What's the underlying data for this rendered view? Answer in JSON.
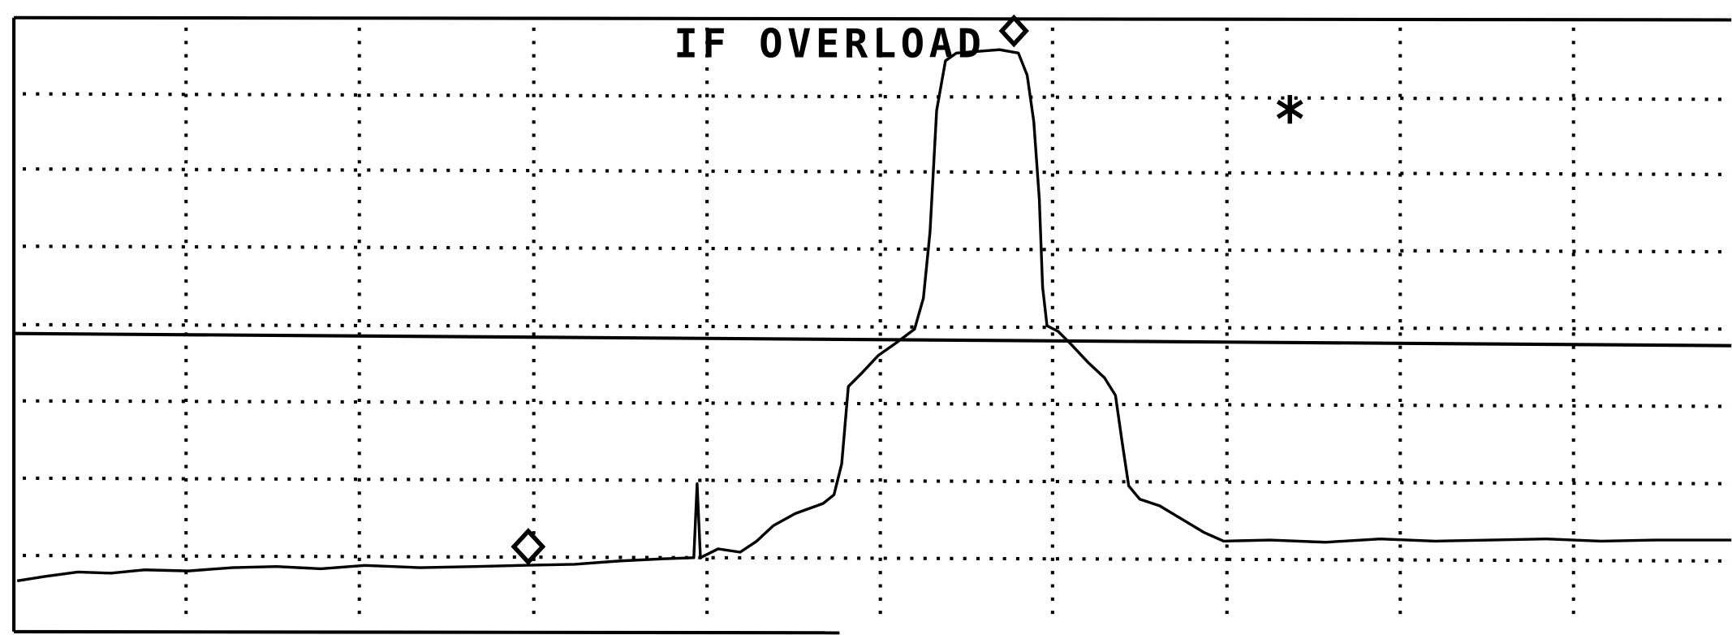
{
  "annotation": "IF OVERLOAD"
}
